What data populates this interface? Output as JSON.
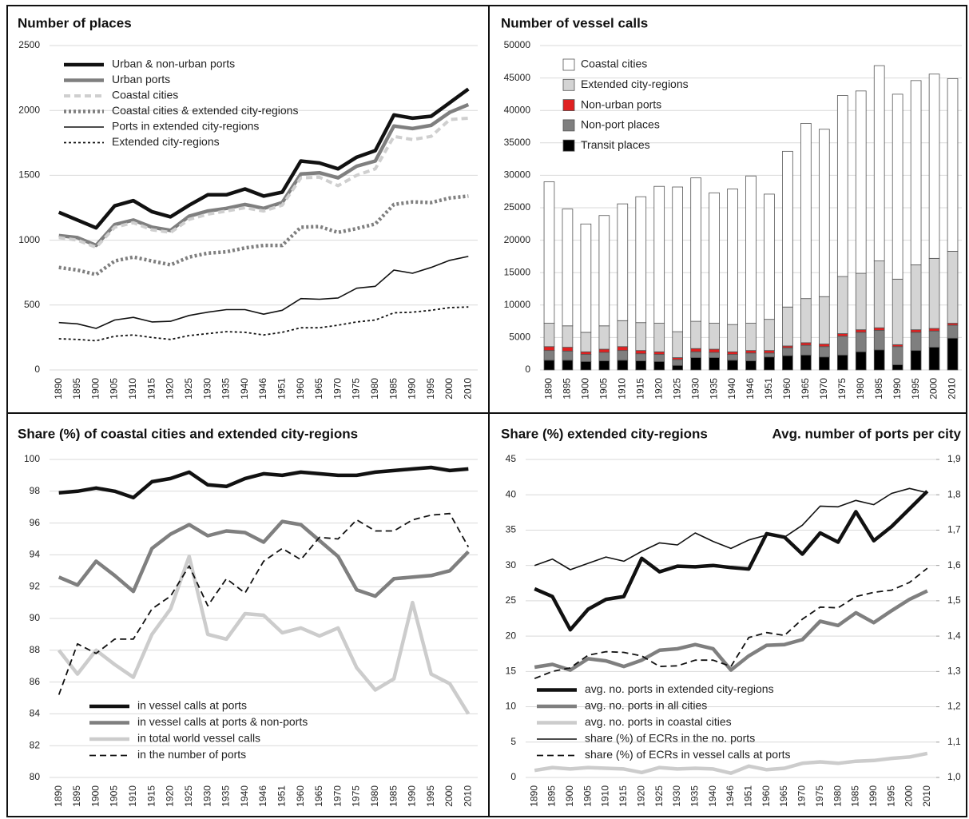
{
  "chart_data": [
    {
      "type": "line",
      "title": "Number of places",
      "categories": [
        "1890",
        "1895",
        "1900",
        "1905",
        "1910",
        "1915",
        "1920",
        "1925",
        "1930",
        "1935",
        "1940",
        "1946",
        "1951",
        "1960",
        "1965",
        "1970",
        "1975",
        "1980",
        "1985",
        "1990",
        "1995",
        "2000",
        "2010"
      ],
      "ylim": [
        0,
        2500
      ],
      "yticks": [
        0,
        500,
        1000,
        1500,
        2000,
        2500
      ],
      "grid": true,
      "legend": "upper left",
      "series": [
        {
          "name": "Urban & non-urban ports",
          "color": "#111111",
          "style": "solid",
          "linewidth": 4.5,
          "values": [
            1215,
            1155,
            1095,
            1265,
            1305,
            1220,
            1180,
            1270,
            1350,
            1350,
            1395,
            1340,
            1370,
            1610,
            1595,
            1550,
            1640,
            1690,
            1965,
            1940,
            1955,
            2060,
            2165
          ]
        },
        {
          "name": "Urban ports",
          "color": "#7f7f7f",
          "style": "solid",
          "linewidth": 4.5,
          "values": [
            1035,
            1020,
            960,
            1120,
            1155,
            1100,
            1075,
            1185,
            1225,
            1245,
            1275,
            1245,
            1290,
            1510,
            1520,
            1480,
            1570,
            1610,
            1880,
            1860,
            1885,
            1985,
            2045
          ]
        },
        {
          "name": "Coastal cities",
          "color": "#cfcfcf",
          "style": "dashed",
          "linewidth": 4,
          "values": [
            1020,
            1000,
            945,
            1100,
            1135,
            1080,
            1060,
            1160,
            1200,
            1225,
            1250,
            1225,
            1270,
            1480,
            1485,
            1420,
            1500,
            1550,
            1800,
            1775,
            1800,
            1930,
            1940
          ]
        },
        {
          "name": "Coastal cities & extended city-regions",
          "color": "#7f7f7f",
          "style": "dotted",
          "linewidth": 4.5,
          "values": [
            790,
            770,
            735,
            840,
            870,
            840,
            810,
            870,
            900,
            910,
            940,
            960,
            960,
            1100,
            1105,
            1060,
            1090,
            1125,
            1275,
            1295,
            1290,
            1325,
            1340
          ]
        },
        {
          "name": "Ports in extended city-regions",
          "color": "#111111",
          "style": "solid",
          "linewidth": 1.6,
          "values": [
            365,
            355,
            320,
            385,
            405,
            370,
            375,
            420,
            445,
            465,
            465,
            430,
            460,
            550,
            545,
            555,
            630,
            645,
            770,
            745,
            790,
            845,
            875
          ]
        },
        {
          "name": "Extended city-regions",
          "color": "#111111",
          "style": "dotted",
          "linewidth": 1.8,
          "values": [
            240,
            235,
            225,
            260,
            270,
            250,
            235,
            265,
            280,
            295,
            290,
            270,
            290,
            325,
            325,
            345,
            370,
            385,
            440,
            445,
            460,
            480,
            485
          ]
        }
      ]
    },
    {
      "type": "bar",
      "title": "Number of vessel calls",
      "categories": [
        "1890",
        "1895",
        "1900",
        "1905",
        "1910",
        "1915",
        "1920",
        "1925",
        "1930",
        "1935",
        "1940",
        "1946",
        "1951",
        "1960",
        "1965",
        "1970",
        "1975",
        "1980",
        "1985",
        "1990",
        "1995",
        "2000",
        "2010"
      ],
      "ylim": [
        0,
        50000
      ],
      "yticks": [
        0,
        5000,
        10000,
        15000,
        20000,
        25000,
        30000,
        35000,
        40000,
        45000,
        50000
      ],
      "grid": true,
      "stacked": true,
      "legend": "upper left",
      "series": [
        {
          "name": "Transit places",
          "color": "#000000",
          "values": [
            1500,
            1500,
            1300,
            1400,
            1500,
            1400,
            1300,
            700,
            1900,
            1900,
            1500,
            1400,
            2000,
            2200,
            2300,
            2000,
            2300,
            2800,
            3100,
            800,
            3000,
            3500,
            4900
          ]
        },
        {
          "name": "Non-port places",
          "color": "#7f7f7f",
          "values": [
            1500,
            1400,
            1100,
            1300,
            1500,
            1100,
            1100,
            900,
            900,
            800,
            900,
            1200,
            600,
            1200,
            1500,
            1600,
            2900,
            3000,
            3000,
            2800,
            2800,
            2500,
            2000
          ]
        },
        {
          "name": "Non-urban ports",
          "color": "#e02020",
          "values": [
            600,
            600,
            400,
            500,
            600,
            500,
            400,
            300,
            500,
            500,
            400,
            400,
            400,
            300,
            400,
            400,
            400,
            400,
            400,
            300,
            400,
            400,
            300
          ]
        },
        {
          "name": "Extended city-regions",
          "color": "#d4d4d4",
          "values": [
            3600,
            3300,
            3000,
            3600,
            4000,
            4300,
            4400,
            4000,
            4200,
            4000,
            4200,
            4200,
            4800,
            6000,
            6800,
            7300,
            8800,
            8700,
            10300,
            10100,
            10000,
            10800,
            11100
          ]
        },
        {
          "name": "Coastal cities",
          "color": "#ffffff",
          "values": [
            21800,
            18000,
            16700,
            17000,
            18000,
            19400,
            21100,
            22300,
            22100,
            20100,
            20900,
            22700,
            19300,
            24000,
            27000,
            25800,
            27900,
            28100,
            30100,
            28500,
            28400,
            28400,
            26600
          ]
        }
      ]
    },
    {
      "type": "line",
      "title": "Share (%) of coastal cities and extended city-regions",
      "categories": [
        "1890",
        "1895",
        "1900",
        "1905",
        "1910",
        "1915",
        "1920",
        "1925",
        "1930",
        "1935",
        "1940",
        "1946",
        "1951",
        "1960",
        "1965",
        "1970",
        "1975",
        "1980",
        "1985",
        "1990",
        "1995",
        "2000",
        "2010"
      ],
      "ylim": [
        80,
        100
      ],
      "yticks": [
        80,
        82,
        84,
        86,
        88,
        90,
        92,
        94,
        96,
        98,
        100
      ],
      "grid": true,
      "legend": "lower left",
      "series": [
        {
          "name": "in vessel calls at ports",
          "color": "#111111",
          "style": "solid",
          "linewidth": 4.5,
          "values": [
            97.9,
            98.0,
            98.2,
            98.0,
            97.6,
            98.6,
            98.8,
            99.2,
            98.4,
            98.3,
            98.8,
            99.1,
            99.0,
            99.2,
            99.1,
            99.0,
            99.0,
            99.2,
            99.3,
            99.4,
            99.5,
            99.3,
            99.4
          ]
        },
        {
          "name": "in vessel calls at ports & non-ports",
          "color": "#7f7f7f",
          "style": "solid",
          "linewidth": 4.5,
          "values": [
            92.6,
            92.1,
            93.6,
            92.7,
            91.7,
            94.4,
            95.3,
            95.9,
            95.2,
            95.5,
            95.4,
            94.8,
            96.1,
            95.9,
            94.9,
            93.9,
            91.8,
            91.4,
            92.5,
            92.6,
            92.7,
            93.0,
            94.2
          ]
        },
        {
          "name": "in total world vessel calls",
          "color": "#cccccc",
          "style": "solid",
          "linewidth": 4.5,
          "values": [
            88.0,
            86.5,
            88.0,
            87.1,
            86.3,
            89.0,
            90.6,
            93.9,
            89.0,
            88.7,
            90.3,
            90.2,
            89.1,
            89.4,
            88.9,
            89.4,
            86.9,
            85.5,
            86.2,
            91.0,
            86.5,
            85.9,
            84.0
          ]
        },
        {
          "name": "in the number of ports",
          "color": "#111111",
          "style": "dashed",
          "linewidth": 1.8,
          "values": [
            85.2,
            88.4,
            87.8,
            88.7,
            88.7,
            90.6,
            91.4,
            93.3,
            90.8,
            92.5,
            91.6,
            93.6,
            94.4,
            93.7,
            95.1,
            95.0,
            96.2,
            95.5,
            95.5,
            96.2,
            96.5,
            96.6,
            94.5
          ]
        }
      ]
    },
    {
      "type": "line",
      "title": "Share (%) extended city-regions",
      "y2_title": "Avg. number of ports per city",
      "categories": [
        "1890",
        "1895",
        "1900",
        "1905",
        "1910",
        "1915",
        "1920",
        "1925",
        "1930",
        "1935",
        "1940",
        "1946",
        "1951",
        "1960",
        "1965",
        "1970",
        "1975",
        "1980",
        "1985",
        "1990",
        "1995",
        "2000",
        "2010"
      ],
      "ylim": [
        0,
        45
      ],
      "yticks": [
        0,
        5,
        10,
        15,
        20,
        25,
        30,
        35,
        40,
        45
      ],
      "y2lim": [
        1.0,
        1.9
      ],
      "y2ticks": [
        {
          "value": 1.0,
          "label": "1,0"
        },
        {
          "value": 1.1,
          "label": "1,1"
        },
        {
          "value": 1.2,
          "label": "1,2"
        },
        {
          "value": 1.3,
          "label": "1,3"
        },
        {
          "value": 1.4,
          "label": "1,4"
        },
        {
          "value": 1.5,
          "label": "1,5"
        },
        {
          "value": 1.6,
          "label": "1,6"
        },
        {
          "value": 1.7,
          "label": "1,7"
        },
        {
          "value": 1.8,
          "label": "1,8"
        },
        {
          "value": 1.9,
          "label": "1,9"
        }
      ],
      "grid": true,
      "legend": "lower left",
      "series": [
        {
          "name": "avg. no. ports in extended city-regions",
          "axis": "y2",
          "color": "#111111",
          "style": "solid",
          "linewidth": 4.5,
          "values": [
            1.534,
            1.512,
            1.418,
            1.476,
            1.504,
            1.512,
            1.62,
            1.582,
            1.598,
            1.596,
            1.6,
            1.594,
            1.59,
            1.69,
            1.68,
            1.632,
            1.692,
            1.666,
            1.752,
            1.67,
            1.71,
            1.76,
            1.81
          ]
        },
        {
          "name": "avg. no. ports in all cities",
          "axis": "y2",
          "color": "#7f7f7f",
          "style": "solid",
          "linewidth": 4.5,
          "values": [
            1.312,
            1.32,
            1.304,
            1.336,
            1.33,
            1.314,
            1.332,
            1.36,
            1.364,
            1.376,
            1.364,
            1.304,
            1.344,
            1.374,
            1.376,
            1.39,
            1.442,
            1.43,
            1.466,
            1.438,
            1.472,
            1.504,
            1.528
          ]
        },
        {
          "name": "avg. no. ports in coastal cities",
          "axis": "y2",
          "color": "#cccccc",
          "style": "solid",
          "linewidth": 4.5,
          "values": [
            1.02,
            1.028,
            1.024,
            1.028,
            1.026,
            1.024,
            1.014,
            1.028,
            1.024,
            1.026,
            1.024,
            1.012,
            1.032,
            1.022,
            1.026,
            1.04,
            1.044,
            1.04,
            1.046,
            1.048,
            1.054,
            1.058,
            1.068
          ]
        },
        {
          "name": "share (%) of ECRs in the no. ports",
          "color": "#111111",
          "style": "solid",
          "linewidth": 1.6,
          "values": [
            30.0,
            30.9,
            29.4,
            30.3,
            31.2,
            30.6,
            32.0,
            33.2,
            32.9,
            34.6,
            33.4,
            32.4,
            33.6,
            34.3,
            34.0,
            35.7,
            38.4,
            38.3,
            39.2,
            38.6,
            40.2,
            40.9,
            40.3
          ]
        },
        {
          "name": "share (%) of ECRs in vessel calls at ports",
          "color": "#111111",
          "style": "dashed",
          "linewidth": 1.8,
          "values": [
            14.0,
            15.0,
            15.5,
            17.3,
            17.8,
            17.7,
            17.2,
            15.7,
            15.8,
            16.6,
            16.6,
            15.7,
            19.8,
            20.5,
            20.1,
            22.4,
            24.1,
            24.0,
            25.6,
            26.2,
            26.5,
            27.6,
            29.6
          ]
        }
      ]
    }
  ]
}
